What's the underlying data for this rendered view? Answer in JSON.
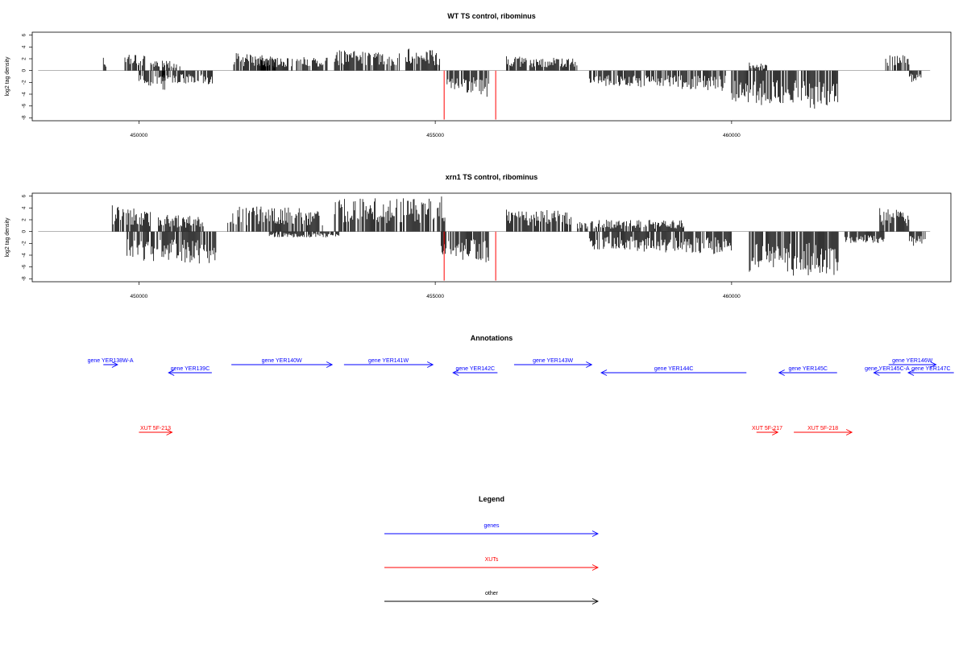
{
  "chart_data": [
    {
      "type": "bar",
      "title": "WT TS control, ribominus",
      "ylabel": "log2 tag density",
      "xlim": [
        448200,
        463700
      ],
      "ylim": [
        -8.5,
        6.5
      ],
      "yticks": [
        6,
        4,
        2,
        0,
        -2,
        -4,
        -6,
        -8
      ],
      "xticks": [
        450000,
        455000,
        460000
      ],
      "profile": [
        {
          "x": [
            449400,
            449450
          ],
          "values": [
            2.5,
            1.5
          ]
        },
        {
          "x": [
            449750,
            450100
          ],
          "values": [
            3.5,
            3
          ]
        },
        {
          "x": [
            450000,
            450450
          ],
          "values": [
            -2.5,
            -3.5
          ]
        },
        {
          "x": [
            450200,
            450700
          ],
          "values": [
            2,
            1.5
          ]
        },
        {
          "x": [
            450400,
            451250
          ],
          "values": [
            -2,
            -2.5
          ]
        },
        {
          "x": [
            451600,
            452300
          ],
          "values": [
            3,
            2.5
          ]
        },
        {
          "x": [
            452000,
            453200
          ],
          "values": [
            2,
            2.5
          ]
        },
        {
          "x": [
            453300,
            454400
          ],
          "values": [
            3.5,
            3
          ]
        },
        {
          "x": [
            454500,
            455100
          ],
          "values": [
            4,
            3.5
          ]
        },
        {
          "x": [
            455200,
            455900
          ],
          "values": [
            -3,
            -4.5
          ]
        },
        {
          "x": [
            456200,
            457400
          ],
          "values": [
            2.5,
            2
          ]
        },
        {
          "x": [
            457600,
            459900
          ],
          "values": [
            -2.5,
            -3.5
          ]
        },
        {
          "x": [
            460000,
            461800
          ],
          "values": [
            -5.5,
            -7
          ]
        },
        {
          "x": [
            460300,
            460600
          ],
          "values": [
            1.5,
            1
          ]
        },
        {
          "x": [
            462600,
            463000
          ],
          "values": [
            3,
            2.5
          ]
        },
        {
          "x": [
            463000,
            463200
          ],
          "values": [
            -2,
            -2
          ]
        }
      ],
      "highlight": {
        "color": "#ff0000",
        "points": [
          {
            "x": 455150,
            "y": -8.3
          },
          {
            "x": 456020,
            "y": -8.3
          }
        ]
      }
    },
    {
      "type": "bar",
      "title": "xrn1 TS control, ribominus",
      "ylabel": "log2 tag density",
      "xlim": [
        448200,
        463700
      ],
      "ylim": [
        -8.5,
        6.5
      ],
      "yticks": [
        6,
        4,
        2,
        0,
        -2,
        -4,
        -6,
        -8
      ],
      "xticks": [
        450000,
        455000,
        460000
      ],
      "profile": [
        {
          "x": [
            449550,
            450200
          ],
          "values": [
            4.5,
            3.5
          ]
        },
        {
          "x": [
            449800,
            451300
          ],
          "values": [
            -5,
            -5.5
          ]
        },
        {
          "x": [
            450300,
            451100
          ],
          "values": [
            3,
            2.5
          ]
        },
        {
          "x": [
            451500,
            453100
          ],
          "values": [
            4.5,
            4
          ]
        },
        {
          "x": [
            452200,
            453400
          ],
          "values": [
            -1,
            -1
          ]
        },
        {
          "x": [
            453300,
            455200
          ],
          "values": [
            5.5,
            6
          ]
        },
        {
          "x": [
            455100,
            455900
          ],
          "values": [
            -4.5,
            -5.5
          ]
        },
        {
          "x": [
            456200,
            457300
          ],
          "values": [
            4,
            3.5
          ]
        },
        {
          "x": [
            457400,
            459200
          ],
          "values": [
            2,
            2
          ]
        },
        {
          "x": [
            457600,
            460000
          ],
          "values": [
            -3,
            -4
          ]
        },
        {
          "x": [
            460300,
            461800
          ],
          "values": [
            -7,
            -8
          ]
        },
        {
          "x": [
            461900,
            462600
          ],
          "values": [
            -2,
            -2
          ]
        },
        {
          "x": [
            462500,
            463000
          ],
          "values": [
            4,
            3.5
          ]
        },
        {
          "x": [
            463000,
            463300
          ],
          "values": [
            -3,
            -2
          ]
        }
      ],
      "highlight": {
        "color": "#ff0000",
        "points": [
          {
            "x": 455150,
            "y": -8.3
          },
          {
            "x": 456020,
            "y": -8.3
          }
        ]
      }
    }
  ],
  "annotations": {
    "title": "Annotations",
    "genes_color": "#0000ff",
    "xuts_color": "#ff0000",
    "genes": [
      {
        "label": "gene YER138W-A",
        "x1": 449400,
        "x2": 449640,
        "strand": "+",
        "row": 0
      },
      {
        "label": "gene YER139C",
        "x1": 450500,
        "x2": 451230,
        "strand": "-",
        "row": 1
      },
      {
        "label": "gene YER140W",
        "x1": 451560,
        "x2": 453260,
        "strand": "+",
        "row": 0
      },
      {
        "label": "gene YER141W",
        "x1": 453460,
        "x2": 454960,
        "strand": "+",
        "row": 0
      },
      {
        "label": "gene YER142C",
        "x1": 455300,
        "x2": 456050,
        "strand": "-",
        "row": 1
      },
      {
        "label": "gene YER143W",
        "x1": 456330,
        "x2": 457640,
        "strand": "+",
        "row": 0
      },
      {
        "label": "gene YER144C",
        "x1": 457800,
        "x2": 460250,
        "strand": "-",
        "row": 1
      },
      {
        "label": "gene YER145C",
        "x1": 460800,
        "x2": 461780,
        "strand": "-",
        "row": 1
      },
      {
        "label": "gene YER145C-A",
        "x1": 462400,
        "x2": 462850,
        "strand": "-",
        "row": 1
      },
      {
        "label": "gene YER146W",
        "x1": 462650,
        "x2": 463450,
        "strand": "+",
        "row": 0
      },
      {
        "label": "gene YER147C",
        "x1": 462980,
        "x2": 463750,
        "strand": "-",
        "row": 1,
        "visible_text": "gen"
      }
    ],
    "xuts": [
      {
        "label": "XUT 5F-213",
        "x1": 450000,
        "x2": 450560,
        "strand": "+"
      },
      {
        "label": "XUT 5F-217",
        "x1": 460420,
        "x2": 460780,
        "strand": "+"
      },
      {
        "label": "XUT 5F-218",
        "x1": 461050,
        "x2": 462030,
        "strand": "+"
      }
    ]
  },
  "legend": {
    "title": "Legend",
    "items": [
      {
        "label": "genes",
        "color": "#0000ff"
      },
      {
        "label": "XUTs",
        "color": "#ff0000"
      },
      {
        "label": "other",
        "color": "#000000"
      }
    ]
  }
}
